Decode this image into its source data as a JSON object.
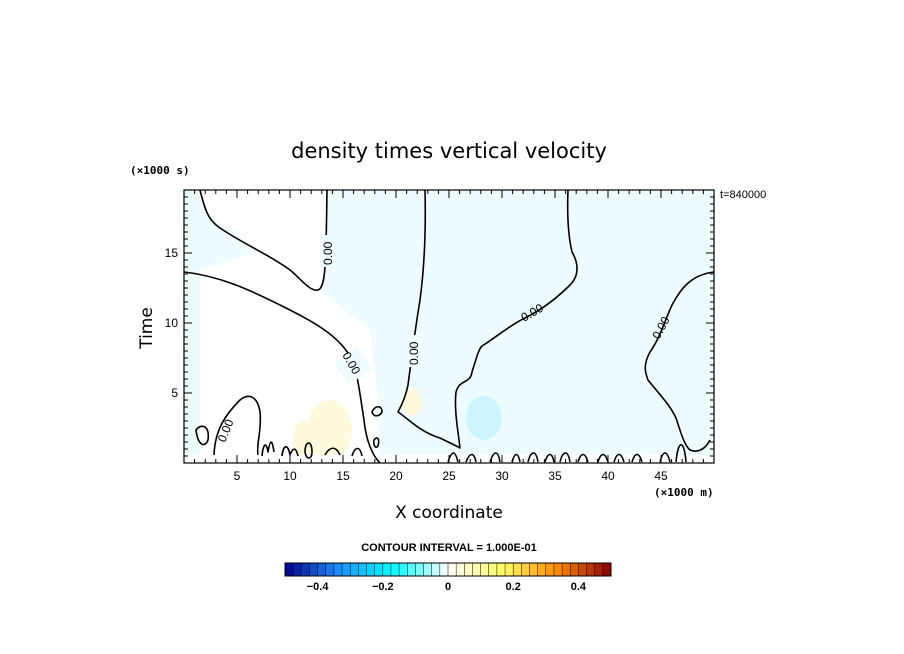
{
  "chart_data": {
    "type": "heatmap",
    "title": "density times vertical velocity",
    "xlabel": "X coordinate",
    "ylabel": "Time",
    "x_unit": "(×1000 m)",
    "y_unit": "(×1000 s)",
    "timestamp": "t=840000",
    "xlim": [
      0,
      50
    ],
    "ylim": [
      0,
      19.5
    ],
    "x_ticks": [
      5,
      10,
      15,
      20,
      25,
      30,
      35,
      40,
      45
    ],
    "y_ticks": [
      5,
      10,
      15
    ],
    "contour_interval_text": "CONTOUR INTERVAL = 1.000E-01",
    "contour_level_label": "0.00",
    "colorbar": {
      "min": -0.5,
      "max": 0.5,
      "step": 0.025,
      "tick_values": [
        -0.4,
        -0.2,
        0,
        0.2,
        0.4
      ],
      "tick_labels": [
        "−0.4",
        "−0.2",
        "0",
        "0.2",
        "0.4"
      ],
      "colors": [
        "#00008b",
        "#1e90ff",
        "#00ffff",
        "#ffffff",
        "#ffff66",
        "#ff8c00",
        "#8b0000"
      ]
    },
    "fill_regions": [
      {
        "sign": "negative",
        "value": -0.02,
        "x_range": [
          0,
          50
        ],
        "y_range": [
          0.5,
          19.5
        ]
      },
      {
        "sign": "negative",
        "value": -0.06,
        "x_center": 28,
        "y_center": 3.2
      },
      {
        "sign": "positive",
        "value": 0.04,
        "x_center": 13,
        "y_center": 3
      }
    ]
  }
}
